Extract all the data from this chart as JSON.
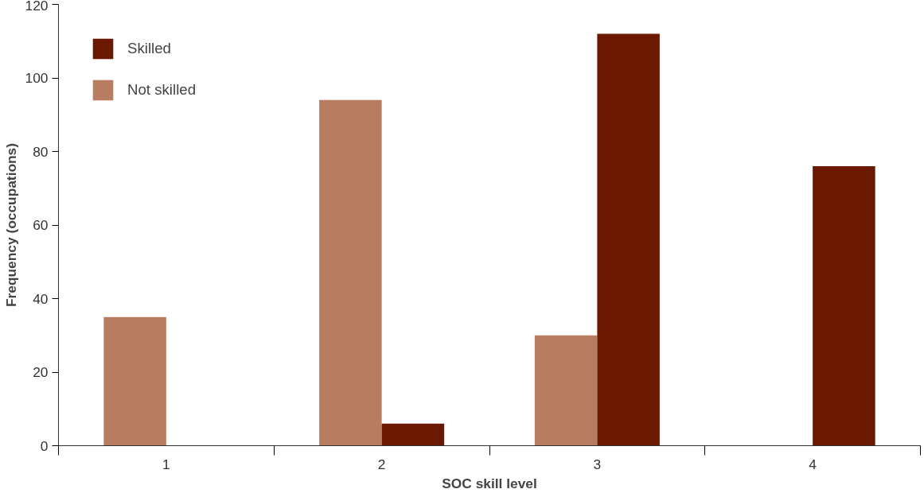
{
  "chart_data": {
    "type": "bar",
    "xlabel": "SOC skill level",
    "ylabel": "Frequency (occupations)",
    "categories": [
      "1",
      "2",
      "3",
      "4"
    ],
    "series": [
      {
        "name": "Not skilled",
        "color": "#b87d60",
        "values": [
          35,
          94,
          30,
          0
        ]
      },
      {
        "name": "Skilled",
        "color": "#6b1800",
        "values": [
          0,
          6,
          112,
          76
        ]
      }
    ],
    "ylim": [
      0,
      120
    ],
    "yticks": [
      0,
      20,
      40,
      60,
      80,
      100,
      120
    ],
    "grid": false,
    "legend": "top left"
  }
}
